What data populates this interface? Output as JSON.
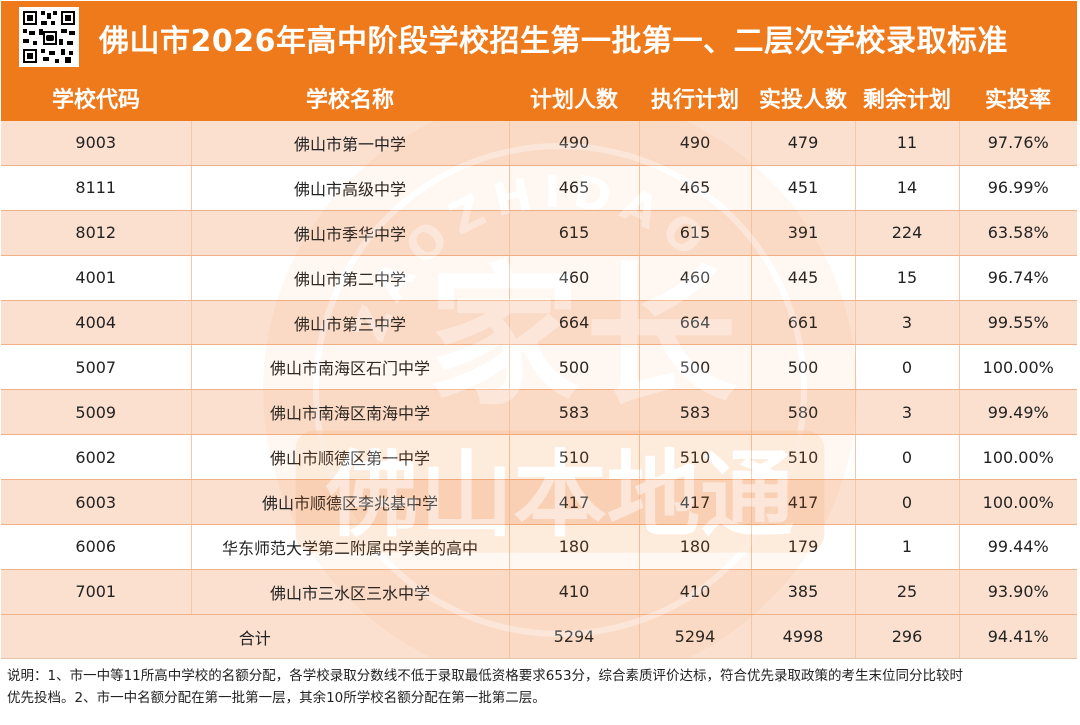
{
  "title": "佛山市2026年高中阶段学校招生第一批第一、二层次学校录取标准",
  "colors": {
    "accent": "#ef7a1c",
    "row_tint": "#fbe0cf"
  },
  "qr_icon": "qr-code-icon",
  "table": {
    "headers": [
      "学校代码",
      "学校名称",
      "计划人数",
      "执行计划",
      "实投人数",
      "剩余计划",
      "实投率"
    ],
    "rows": [
      [
        "9003",
        "佛山市第一中学",
        "490",
        "490",
        "479",
        "11",
        "97.76%"
      ],
      [
        "8111",
        "佛山市高级中学",
        "465",
        "465",
        "451",
        "14",
        "96.99%"
      ],
      [
        "8012",
        "佛山市季华中学",
        "615",
        "615",
        "391",
        "224",
        "63.58%"
      ],
      [
        "4001",
        "佛山市第二中学",
        "460",
        "460",
        "445",
        "15",
        "96.74%"
      ],
      [
        "4004",
        "佛山市第三中学",
        "664",
        "664",
        "661",
        "3",
        "99.55%"
      ],
      [
        "5007",
        "佛山市南海区石门中学",
        "500",
        "500",
        "500",
        "0",
        "100.00%"
      ],
      [
        "5009",
        "佛山市南海区南海中学",
        "583",
        "583",
        "580",
        "3",
        "99.49%"
      ],
      [
        "6002",
        "佛山市顺德区第一中学",
        "510",
        "510",
        "510",
        "0",
        "100.00%"
      ],
      [
        "6003",
        "佛山市顺德区李兆基中学",
        "417",
        "417",
        "417",
        "0",
        "100.00%"
      ],
      [
        "6006",
        "华东师范大学第二附属中学美的高中",
        "180",
        "180",
        "179",
        "1",
        "99.44%"
      ],
      [
        "7001",
        "佛山市三水区三水中学",
        "410",
        "410",
        "385",
        "25",
        "93.90%"
      ]
    ],
    "total": [
      "合计",
      "5294",
      "5294",
      "4998",
      "296",
      "94.41%"
    ]
  },
  "note": {
    "line1": "说明：1、市一中等11所高中学校的名额分配，各学校录取分数线不低于录取最低资格要求653分，综合素质评价达标，符合优先录取政策的考生末位同分比较时",
    "line2": "优先投档。2、市一中名额分配在第一批第一层，其余10所学校名额分配在第一批第二层。"
  },
  "watermark": {
    "arc_text": "ZAOZHIDAO",
    "chars": [
      "家",
      "长"
    ],
    "banner": "佛山本地通"
  }
}
